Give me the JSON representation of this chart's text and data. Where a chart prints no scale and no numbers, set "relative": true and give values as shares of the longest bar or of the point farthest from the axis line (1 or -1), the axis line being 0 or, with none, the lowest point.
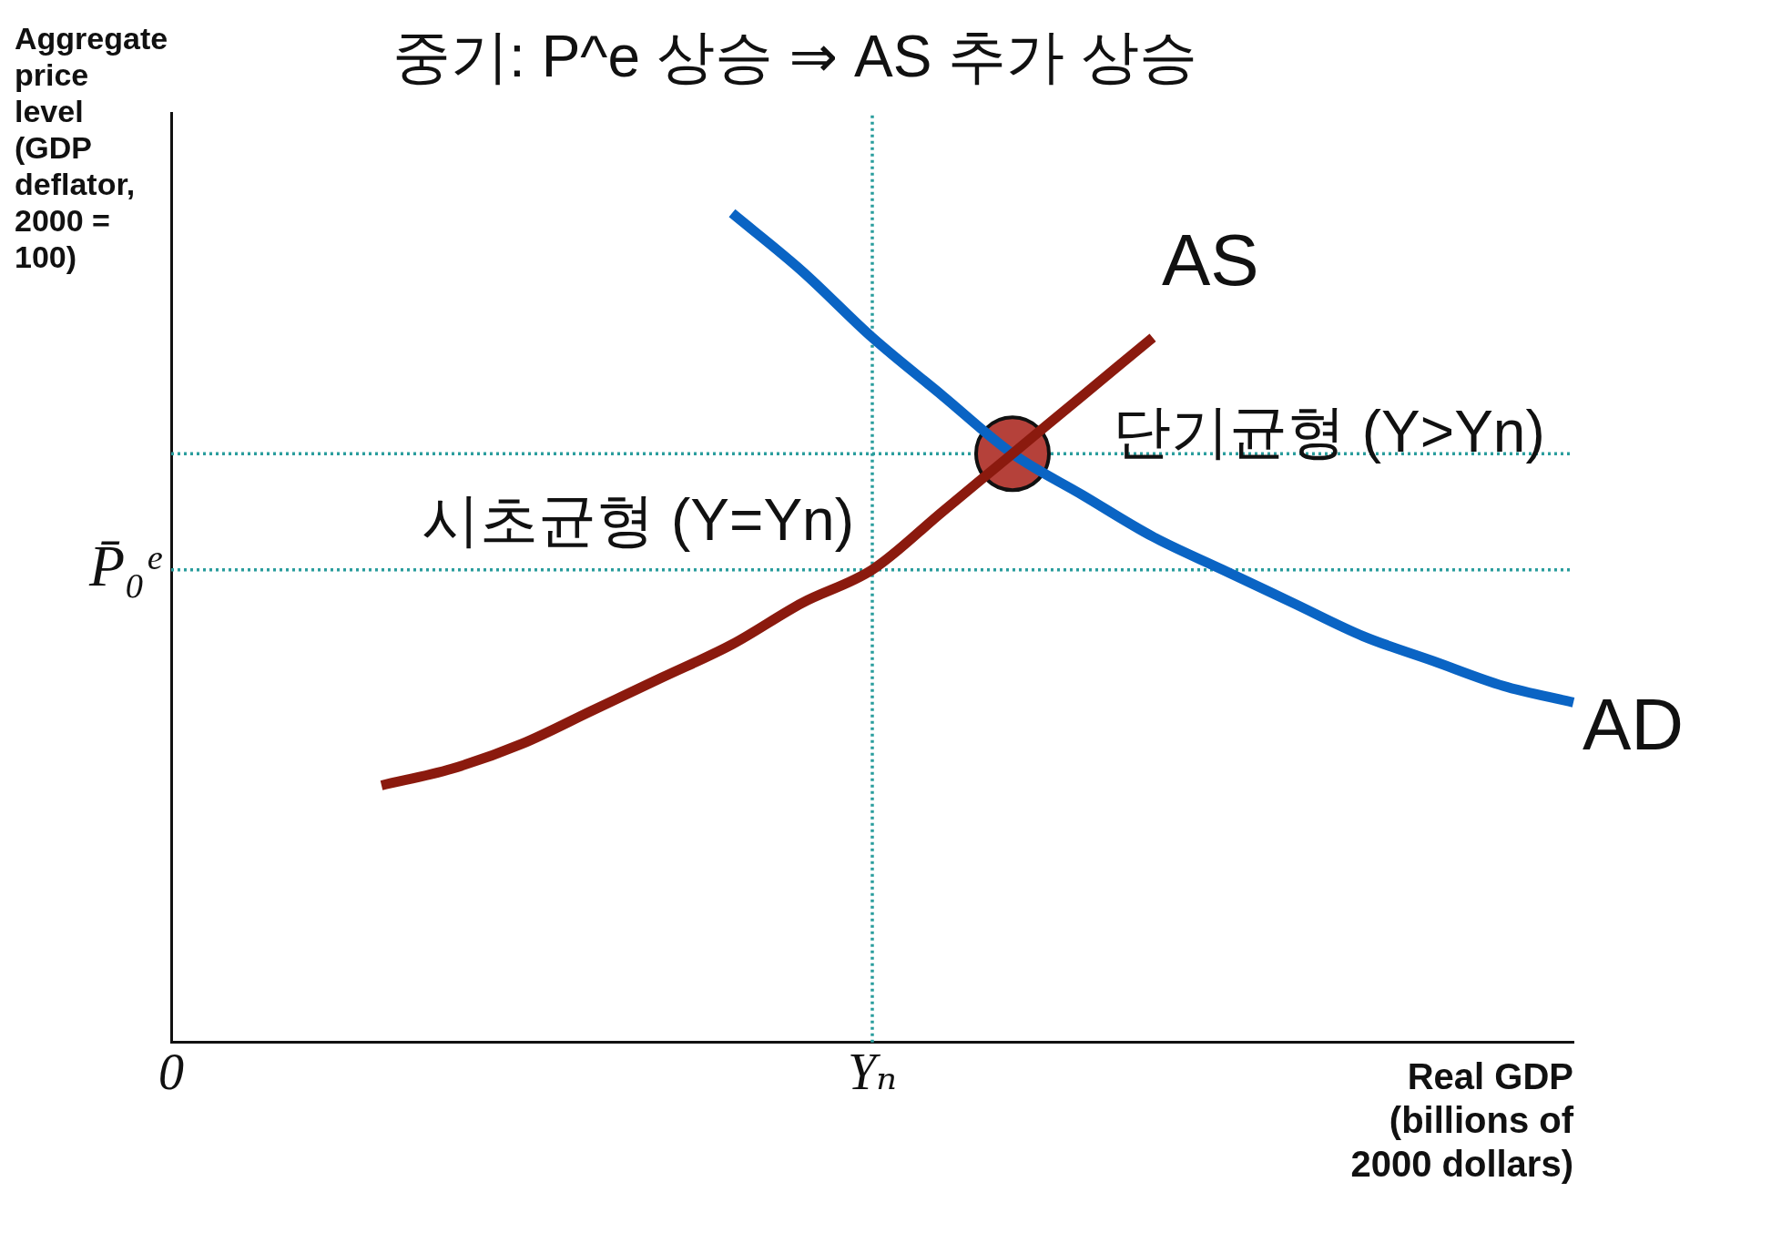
{
  "chart_data": {
    "type": "line",
    "title": "중기: P^e 상승 ⇒ AS 추가 상승",
    "xlabel": "Real GDP (billions of 2000 dollars)",
    "ylabel": "Aggregate price level (GDP deflator, 2000 = 100)",
    "relative": true,
    "categories": [
      "0",
      null,
      null,
      null,
      null,
      null,
      null,
      null,
      null,
      null,
      "Yₙ",
      null,
      null,
      null,
      null,
      null,
      null,
      null,
      null,
      null,
      null
    ],
    "series": [
      {
        "name": "AS",
        "color": "#8b1a0e",
        "values": [
          null,
          null,
          null,
          0.31,
          0.33,
          0.36,
          0.4,
          0.44,
          0.48,
          0.53,
          0.57,
          0.64,
          0.71,
          0.78,
          0.85,
          null,
          null,
          null,
          null,
          null,
          null
        ]
      },
      {
        "name": "AD",
        "color": "#0a64c4",
        "values": [
          null,
          null,
          null,
          null,
          null,
          null,
          null,
          null,
          1.0,
          0.93,
          0.85,
          0.78,
          0.71,
          0.66,
          0.61,
          0.57,
          0.53,
          0.49,
          0.46,
          0.43,
          0.41
        ]
      },
      {
        "type": "scatter",
        "color": "#b5413a",
        "marker": "circle",
        "values": [
          null,
          null,
          null,
          null,
          null,
          null,
          null,
          null,
          null,
          null,
          null,
          null,
          0.71,
          null,
          null,
          null,
          null,
          null,
          null,
          null,
          null
        ]
      }
    ],
    "ref_lines": [
      {
        "axis": "y",
        "value": 0.57,
        "label": "P̄₀ᵉ",
        "color": "#2a9d9d",
        "line_style": "dotted"
      },
      {
        "axis": "y",
        "value": 0.71,
        "color": "#2a9d9d",
        "line_style": "dotted"
      },
      {
        "axis": "x",
        "value": "Yₙ",
        "color": "#2a9d9d",
        "line_style": "dotted"
      }
    ],
    "annotations": [
      {
        "text": "단기균형 (Y>Yn)",
        "y": 0.71
      },
      {
        "text": "시초균형 (Y=Yn)",
        "x": "Yₙ",
        "y": 0.57
      }
    ],
    "grid": false,
    "legend": false,
    "marker": "none",
    "line_style": "solid"
  }
}
